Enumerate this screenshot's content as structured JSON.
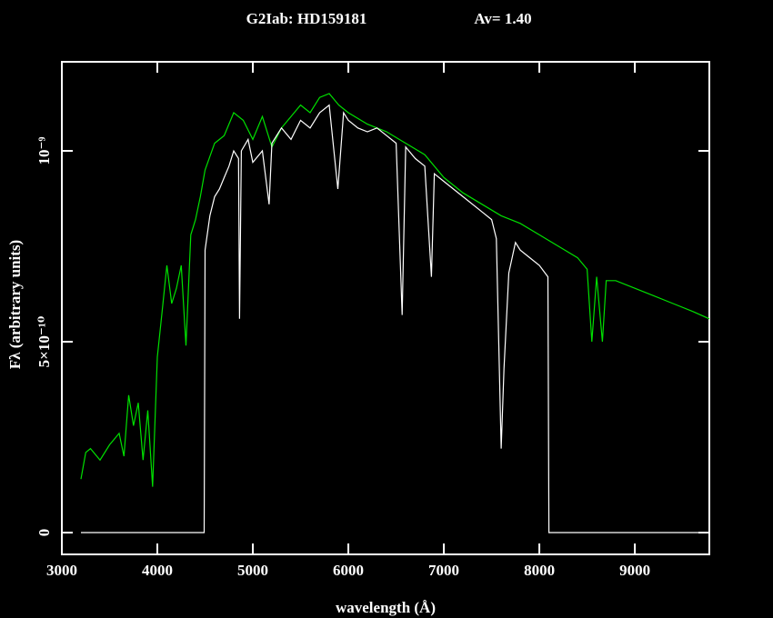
{
  "chart_data": {
    "type": "line",
    "title": "G2Iab:   HD159181",
    "annotation": "Av=   1.40",
    "x_label": "wavelength (Å)",
    "y_label": "Fλ (arbitrary units)",
    "xlim": [
      3000,
      9780
    ],
    "ylim": [
      -5.71e-11,
      1.2333e-09
    ],
    "xticks": [
      3000,
      4000,
      5000,
      6000,
      7000,
      8000,
      9000
    ],
    "yticks": [
      0,
      {
        "value": 5e-10,
        "label": "5×10⁻¹⁰"
      },
      {
        "value": 1e-09,
        "label": "10⁻⁹"
      }
    ],
    "series": [
      {
        "color": "#00e000",
        "x": [
          3200,
          3250,
          3300,
          3400,
          3500,
          3600,
          3650,
          3700,
          3750,
          3800,
          3850,
          3900,
          3950,
          4000,
          4050,
          4100,
          4150,
          4200,
          4250,
          4300,
          4350,
          4400,
          4450,
          4500,
          4600,
          4700,
          4800,
          4900,
          5000,
          5100,
          5200,
          5300,
          5400,
          5500,
          5600,
          5700,
          5800,
          5900,
          6000,
          6200,
          6400,
          6600,
          6800,
          7000,
          7200,
          7400,
          7600,
          7800,
          8000,
          8200,
          8400,
          8500,
          8550,
          8600,
          8660,
          8700,
          8800,
          9000,
          9200,
          9400,
          9600,
          9780
        ],
        "values": [
          1.4e-10,
          2.1e-10,
          2.2e-10,
          1.9e-10,
          2.3e-10,
          2.6e-10,
          2e-10,
          3.6e-10,
          2.8e-10,
          3.4e-10,
          1.9e-10,
          3.2e-10,
          1.2e-10,
          4.6e-10,
          5.8e-10,
          7e-10,
          6e-10,
          6.4e-10,
          7e-10,
          4.9e-10,
          7.8e-10,
          8.2e-10,
          8.8e-10,
          9.5e-10,
          1.02e-09,
          1.04e-09,
          1.1e-09,
          1.08e-09,
          1.03e-09,
          1.09e-09,
          1.01e-09,
          1.06e-09,
          1.09e-09,
          1.12e-09,
          1.1e-09,
          1.14e-09,
          1.15e-09,
          1.12e-09,
          1.1e-09,
          1.07e-09,
          1.05e-09,
          1.02e-09,
          9.9e-10,
          9.3e-10,
          8.9e-10,
          8.6e-10,
          8.3e-10,
          8.1e-10,
          7.8e-10,
          7.5e-10,
          7.2e-10,
          6.9e-10,
          5e-10,
          6.7e-10,
          5e-10,
          6.6e-10,
          6.6e-10,
          6.4e-10,
          6.2e-10,
          6e-10,
          5.8e-10,
          5.6e-10
        ]
      },
      {
        "color": "#ffffff",
        "x": [
          3200,
          4490,
          4500,
          4550,
          4600,
          4650,
          4700,
          4750,
          4800,
          4850,
          4861,
          4880,
          4950,
          5000,
          5100,
          5170,
          5200,
          5300,
          5400,
          5500,
          5600,
          5700,
          5800,
          5890,
          5950,
          6000,
          6100,
          6200,
          6300,
          6400,
          6500,
          6563,
          6600,
          6700,
          6800,
          6870,
          6900,
          7000,
          7200,
          7400,
          7500,
          7550,
          7600,
          7630,
          7680,
          7750,
          7800,
          7900,
          8000,
          8090,
          8100,
          9780
        ],
        "values": [
          0,
          0,
          7.4e-10,
          8.3e-10,
          8.8e-10,
          9e-10,
          9.3e-10,
          9.6e-10,
          1e-09,
          9.8e-10,
          5.6e-10,
          1e-09,
          1.03e-09,
          9.7e-10,
          1e-09,
          8.6e-10,
          1.02e-09,
          1.06e-09,
          1.03e-09,
          1.08e-09,
          1.06e-09,
          1.1e-09,
          1.12e-09,
          9e-10,
          1.1e-09,
          1.08e-09,
          1.06e-09,
          1.05e-09,
          1.06e-09,
          1.04e-09,
          1.02e-09,
          5.7e-10,
          1.01e-09,
          9.8e-10,
          9.6e-10,
          6.7e-10,
          9.4e-10,
          9.2e-10,
          8.8e-10,
          8.4e-10,
          8.2e-10,
          7.7e-10,
          2.2e-10,
          4.3e-10,
          6.8e-10,
          7.6e-10,
          7.4e-10,
          7.2e-10,
          7e-10,
          6.7e-10,
          0,
          0
        ]
      }
    ]
  }
}
